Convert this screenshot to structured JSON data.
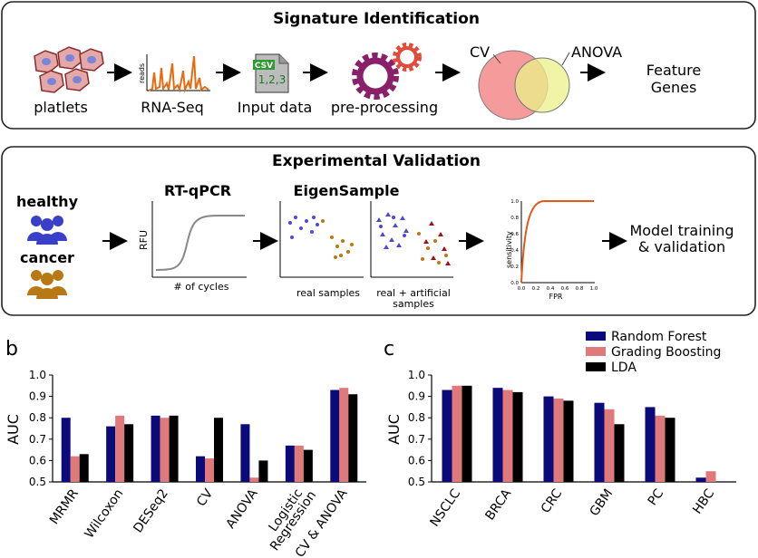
{
  "panel_a": {
    "title": "Signature Identification",
    "steps": [
      {
        "label": "platlets",
        "icon": "platelets-icon"
      },
      {
        "label": "RNA-Seq",
        "icon": "rna-seq-peaks-icon",
        "axis": "reads"
      },
      {
        "label": "Input data",
        "icon": "csv-file-icon",
        "badge": "CSV",
        "content": "1,2,3"
      },
      {
        "label": "pre-processing",
        "icon": "gears-icon"
      }
    ],
    "venn": {
      "left": "CV",
      "right": "ANOVA"
    },
    "output": {
      "line1": "Feature",
      "line2": "Genes"
    }
  },
  "panel_b_top": {
    "title": "Experimental Validation",
    "groups": [
      {
        "label": "healthy",
        "color": "#3a3fc8",
        "icon": "people-icon"
      },
      {
        "label": "cancer",
        "color": "#b87814",
        "icon": "people-icon"
      }
    ],
    "qpcr": {
      "title": "RT-qPCR",
      "ylabel": "RFU",
      "xlabel": "# of cycles"
    },
    "eigen": {
      "title": "EigenSample",
      "caption_left": "real samples",
      "caption_right_1": "real + artificial",
      "caption_right_2": "samples"
    },
    "roc": {
      "ylabel": "sensitivity",
      "xlabel": "FPR",
      "ticks": [
        "0.0",
        "0.2",
        "0.4",
        "0.6",
        "0.8",
        "1.0"
      ]
    },
    "output": {
      "line1": "Model training",
      "line2": "& validation"
    }
  },
  "legend": [
    {
      "name": "Random Forest",
      "color": "#0a0a7a"
    },
    {
      "name": "Grading Boosting",
      "color": "#e07a7a"
    },
    {
      "name": "LDA",
      "color": "#000000"
    }
  ],
  "chart_data": [
    {
      "type": "bar",
      "panel_label": "b",
      "ylabel": "AUC",
      "ylim": [
        0.5,
        1.0
      ],
      "yticks": [
        "0.5",
        "0.6",
        "0.7",
        "0.8",
        "0.9",
        "1.0"
      ],
      "categories": [
        "MRMR",
        "Wilcoxon",
        "DESeq2",
        "CV",
        "ANOVA",
        "Logistic Regression",
        "CV & ANOVA"
      ],
      "series": [
        {
          "name": "Random Forest",
          "values": [
            0.8,
            0.76,
            0.81,
            0.62,
            0.77,
            0.67,
            0.93
          ]
        },
        {
          "name": "Grading Boosting",
          "values": [
            0.62,
            0.81,
            0.8,
            0.61,
            0.52,
            0.67,
            0.94
          ]
        },
        {
          "name": "LDA",
          "values": [
            0.63,
            0.77,
            0.81,
            0.8,
            0.6,
            0.65,
            0.91
          ]
        }
      ]
    },
    {
      "type": "bar",
      "panel_label": "c",
      "ylabel": "AUC",
      "ylim": [
        0.5,
        1.0
      ],
      "yticks": [
        "0.5",
        "0.6",
        "0.7",
        "0.8",
        "0.9",
        "1.0"
      ],
      "categories": [
        "NSCLC",
        "BRCA",
        "CRC",
        "GBM",
        "PC",
        "HBC"
      ],
      "series": [
        {
          "name": "Random Forest",
          "values": [
            0.93,
            0.94,
            0.9,
            0.87,
            0.85,
            0.52
          ]
        },
        {
          "name": "Grading Boosting",
          "values": [
            0.95,
            0.93,
            0.89,
            0.84,
            0.81,
            0.55
          ]
        },
        {
          "name": "LDA",
          "values": [
            0.95,
            0.92,
            0.88,
            0.77,
            0.8,
            null
          ]
        }
      ]
    }
  ]
}
